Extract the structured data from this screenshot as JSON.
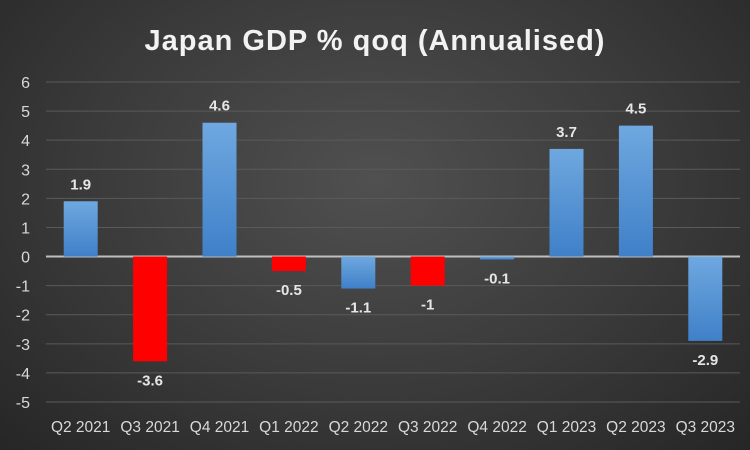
{
  "chart_data": {
    "type": "bar",
    "title": "Japan GDP % qoq (Annualised)",
    "categories": [
      "Q2 2021",
      "Q3 2021",
      "Q4 2021",
      "Q1 2022",
      "Q2 2022",
      "Q3 2022",
      "Q4 2022",
      "Q1 2023",
      "Q2 2023",
      "Q3 2023"
    ],
    "values": [
      1.9,
      -3.6,
      4.6,
      -0.5,
      -1.1,
      -1,
      -0.1,
      3.7,
      4.5,
      -2.9
    ],
    "data_labels": [
      "1.9",
      "-3.6",
      "4.6",
      "-0.5",
      "-1.1",
      "-1",
      "-0.1",
      "3.7",
      "4.5",
      "-2.9"
    ],
    "bar_colors": [
      "#4f8fd6",
      "#ff0000",
      "#4f8fd6",
      "#ff0000",
      "#4f8fd6",
      "#ff0000",
      "#4f8fd6",
      "#4f8fd6",
      "#4f8fd6",
      "#4f8fd6"
    ],
    "ylim": [
      -5,
      6
    ],
    "yticks": [
      "6",
      "5",
      "4",
      "3",
      "2",
      "1",
      "0",
      "-1",
      "-2",
      "-3",
      "-4",
      "-5"
    ],
    "xlabel": "",
    "ylabel": "",
    "grid": true,
    "legend": "none"
  }
}
